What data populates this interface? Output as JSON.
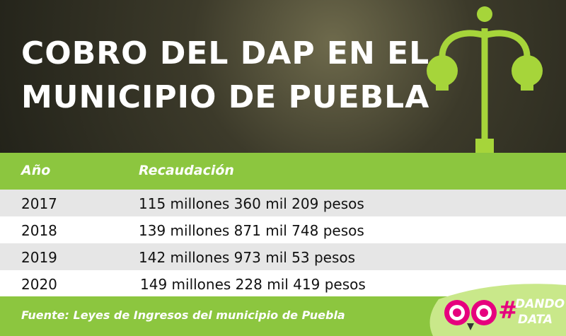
{
  "header": {
    "title_lines": [
      "COBRO DEL DAP EN EL",
      "MUNICIPIO DE PUEBLA"
    ]
  },
  "table": {
    "columns": [
      "Año",
      "Recaudación"
    ],
    "rows": [
      [
        "2017",
        "115 millones 360 mil 209 pesos"
      ],
      [
        "2018",
        "139 millones 871 mil 748 pesos"
      ],
      [
        "2019",
        "142 millones 973 mil 53 pesos"
      ],
      [
        "2020",
        "149 millones 228 mil 419 pesos"
      ]
    ]
  },
  "footer": {
    "source": "Fuente: Leyes de Ingresos del municipio de Puebla"
  },
  "logo": {
    "hash": "#",
    "line1": "DANDO",
    "line2": "DATA"
  }
}
